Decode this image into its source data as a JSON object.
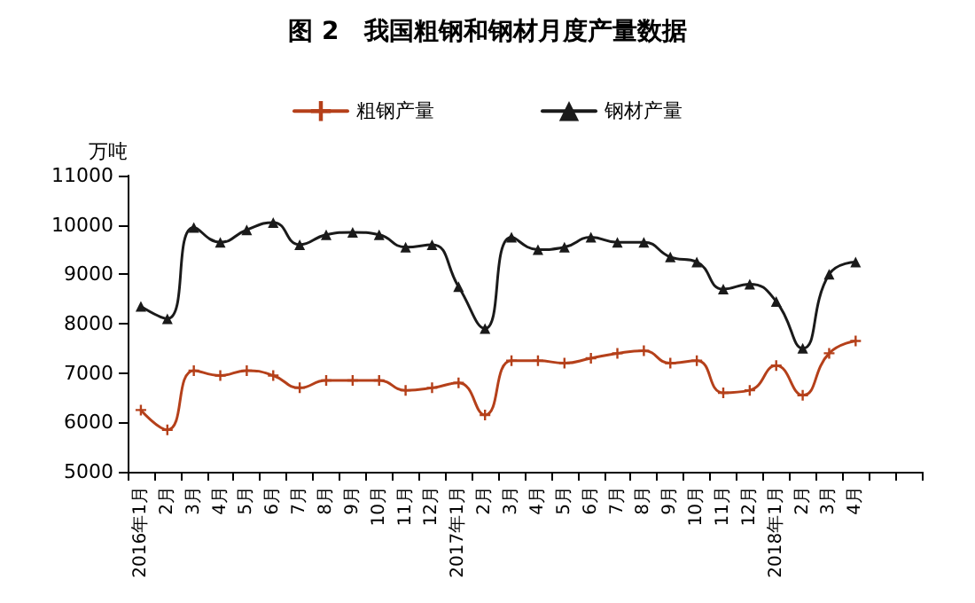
{
  "chart_data": {
    "type": "line",
    "title": "图 2　我国粗钢和钢材月度产量数据",
    "ylabel": "万吨",
    "categories": [
      "2016年1月",
      "2月",
      "3月",
      "4月",
      "5月",
      "6月",
      "7月",
      "8月",
      "9月",
      "10月",
      "11月",
      "12月",
      "2017年1月",
      "2月",
      "3月",
      "4月",
      "5月",
      "6月",
      "7月",
      "8月",
      "9月",
      "10月",
      "11月",
      "12月",
      "2018年1月",
      "2月",
      "3月",
      "4月",
      null,
      null
    ],
    "series": [
      {
        "name": "粗钢产量",
        "color": "#b5401a",
        "marker": "cross",
        "values": [
          6250,
          5850,
          7050,
          6950,
          7050,
          6950,
          6700,
          6850,
          6850,
          6850,
          6650,
          6700,
          6800,
          6150,
          7250,
          7250,
          7200,
          7300,
          7400,
          7450,
          7200,
          7250,
          6600,
          6650,
          7150,
          6550,
          7400,
          7650,
          null,
          null
        ]
      },
      {
        "name": "钢材产量",
        "color": "#1a1a1a",
        "values": [
          8350,
          8100,
          9950,
          9650,
          9900,
          10050,
          9600,
          9800,
          9850,
          9800,
          9550,
          9600,
          8750,
          7900,
          9750,
          9500,
          9550,
          9750,
          9650,
          9650,
          9350,
          9250,
          8700,
          8800,
          8450,
          7500,
          9000,
          9250,
          null,
          null
        ]
      }
    ],
    "ylim": [
      5000,
      11000
    ],
    "yticks": [
      5000,
      6000,
      7000,
      8000,
      9000,
      10000,
      11000
    ],
    "grid": false,
    "legend": "top",
    "marker": "triangle",
    "line_style": "solid"
  }
}
